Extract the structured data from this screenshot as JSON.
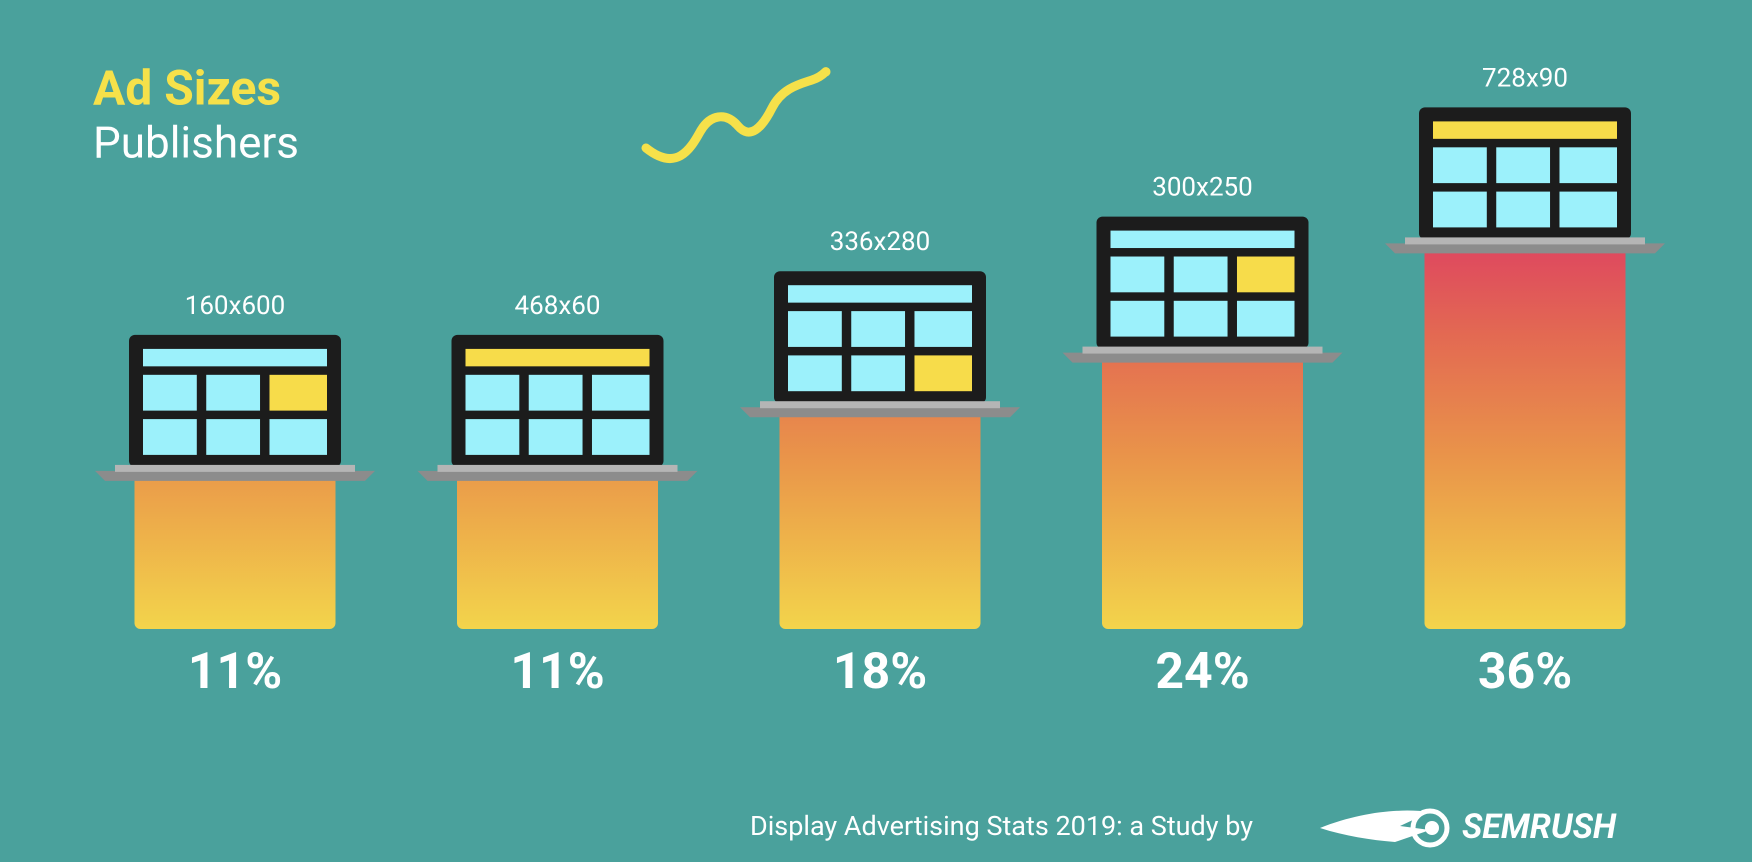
{
  "chart_data": {
    "type": "bar",
    "title": "Ad Sizes",
    "subtitle": "Publishers",
    "categories": [
      "160x600",
      "468x60",
      "336x280",
      "300x250",
      "728x90"
    ],
    "values": [
      11,
      11,
      18,
      24,
      36
    ],
    "value_labels": [
      "11%",
      "11%",
      "18%",
      "24%",
      "36%"
    ],
    "footer": "Display Advertising Stats 2019: a Study by",
    "brand": "SEMRUSH"
  }
}
